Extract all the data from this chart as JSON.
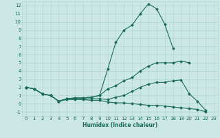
{
  "xlabel": "Humidex (Indice chaleur)",
  "xlim": [
    -0.5,
    23.5
  ],
  "ylim": [
    -1.5,
    12.5
  ],
  "xticks": [
    0,
    1,
    2,
    3,
    4,
    5,
    6,
    7,
    8,
    9,
    10,
    11,
    12,
    13,
    14,
    15,
    16,
    17,
    18,
    19,
    20,
    21,
    22,
    23
  ],
  "yticks": [
    -1,
    0,
    1,
    2,
    3,
    4,
    5,
    6,
    7,
    8,
    9,
    10,
    11,
    12
  ],
  "bg_color": "#cce8e5",
  "grid_color": "#aacfcc",
  "line_color": "#1a6b5a",
  "series": [
    [
      2.0,
      1.8,
      1.2,
      1.0,
      0.3,
      0.6,
      0.7,
      0.7,
      0.8,
      1.0,
      4.2,
      7.5,
      9.0,
      9.6,
      11.0,
      12.2,
      11.6,
      9.7,
      6.8,
      null,
      null,
      null,
      null,
      null
    ],
    [
      2.0,
      1.8,
      1.2,
      1.0,
      0.3,
      0.6,
      0.7,
      0.7,
      0.8,
      1.0,
      1.8,
      2.2,
      2.8,
      3.2,
      4.0,
      4.6,
      5.0,
      5.0,
      5.0,
      5.2,
      5.0,
      null,
      null,
      null
    ],
    [
      2.0,
      1.8,
      1.2,
      1.0,
      0.3,
      0.6,
      0.6,
      0.6,
      0.6,
      0.6,
      0.5,
      0.8,
      1.0,
      1.5,
      2.0,
      2.4,
      2.6,
      2.6,
      2.8,
      2.9,
      1.2,
      0.3,
      -0.8,
      null
    ],
    [
      2.0,
      1.8,
      1.2,
      1.0,
      0.3,
      0.5,
      0.5,
      0.5,
      0.4,
      0.4,
      0.2,
      0.1,
      0.1,
      0.0,
      -0.1,
      -0.2,
      -0.2,
      -0.3,
      -0.4,
      -0.5,
      -0.6,
      -0.7,
      -1.0,
      null
    ]
  ],
  "marker_style": "D",
  "marker_size": 1.5,
  "line_width": 0.8,
  "tick_fontsize": 5.0,
  "xlabel_fontsize": 5.5
}
